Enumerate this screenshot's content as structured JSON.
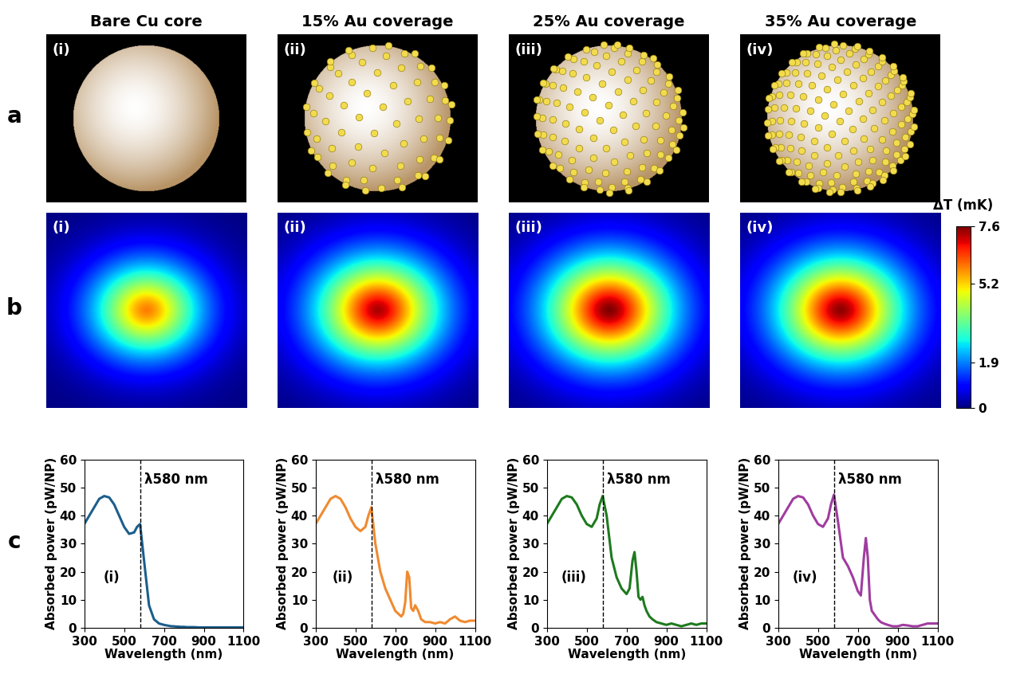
{
  "column_titles": [
    "Bare Cu core",
    "15% Au coverage",
    "25% Au coverage",
    "35% Au coverage"
  ],
  "row_labels": [
    "a",
    "b",
    "c"
  ],
  "panel_labels": [
    "(i)",
    "(ii)",
    "(iii)",
    "(iv)"
  ],
  "schematics": {
    "au_coverage": [
      0,
      15,
      25,
      35
    ]
  },
  "heat_maps": {
    "peak_dT": [
      5.9,
      7.3,
      7.6,
      7.5
    ],
    "colorbar": {
      "label": "ΔT (mK)",
      "range": [
        0,
        7.6
      ],
      "ticks": [
        0,
        1.9,
        5.2,
        7.6
      ]
    }
  },
  "chart_data": [
    {
      "type": "line",
      "color": "#1b5e8c",
      "x": [
        300,
        325,
        350,
        375,
        400,
        425,
        450,
        475,
        500,
        525,
        550,
        565,
        580,
        600,
        625,
        650,
        675,
        700,
        715,
        730,
        740,
        750,
        760,
        770,
        780,
        790,
        800,
        815,
        830,
        850,
        875,
        900,
        925,
        950,
        975,
        1000,
        1025,
        1050,
        1075,
        1100
      ],
      "values": [
        37,
        40,
        43,
        46,
        47,
        46.5,
        44,
        40,
        36,
        33.5,
        34,
        36,
        37,
        24,
        8,
        3,
        1.5,
        1,
        0.8,
        0.6,
        0.5,
        0.5,
        0.4,
        0.4,
        0.3,
        0.3,
        0.3,
        0.2,
        0.2,
        0.2,
        0.1,
        0.1,
        0.1,
        0.1,
        0.1,
        0.1,
        0.1,
        0.1,
        0.1,
        0.1
      ],
      "xlim": [
        300,
        1100
      ],
      "ylim": [
        0,
        60
      ],
      "xticks": [
        300,
        500,
        700,
        900,
        1100
      ],
      "yticks": [
        0,
        10,
        20,
        30,
        40,
        50,
        60
      ],
      "x_label": "Wavelength (nm)",
      "y_label": "Absorbed power (pW/NP)",
      "marker_x": 580,
      "annotation": "λ580 nm"
    },
    {
      "type": "line",
      "color": "#f08a30",
      "x": [
        300,
        325,
        350,
        375,
        400,
        425,
        450,
        475,
        500,
        525,
        550,
        565,
        580,
        600,
        625,
        650,
        675,
        700,
        715,
        730,
        740,
        750,
        760,
        770,
        780,
        790,
        800,
        815,
        830,
        850,
        875,
        900,
        925,
        950,
        975,
        1000,
        1025,
        1050,
        1075,
        1100
      ],
      "values": [
        37,
        40,
        43,
        46,
        47,
        46,
        43,
        39,
        36,
        34.5,
        36,
        40,
        43,
        30,
        20,
        14,
        10,
        6,
        5,
        4,
        5,
        9,
        20,
        18,
        7,
        6,
        8,
        6,
        3,
        2,
        2,
        1.5,
        2,
        1.5,
        3,
        4,
        2.5,
        2,
        2.5,
        2.5
      ],
      "xlim": [
        300,
        1100
      ],
      "ylim": [
        0,
        60
      ],
      "xticks": [
        300,
        500,
        700,
        900,
        1100
      ],
      "yticks": [
        0,
        10,
        20,
        30,
        40,
        50,
        60
      ],
      "x_label": "Wavelength (nm)",
      "y_label": "Absorbed power (pW/NP)",
      "marker_x": 580,
      "annotation": "λ580 nm"
    },
    {
      "type": "line",
      "color": "#1e7a1e",
      "x": [
        300,
        325,
        350,
        375,
        400,
        425,
        450,
        475,
        500,
        525,
        550,
        565,
        580,
        600,
        625,
        650,
        675,
        700,
        715,
        730,
        740,
        750,
        760,
        770,
        780,
        790,
        800,
        815,
        830,
        850,
        875,
        900,
        925,
        950,
        975,
        1000,
        1025,
        1050,
        1075,
        1100
      ],
      "values": [
        37,
        40,
        43,
        46,
        47,
        46.5,
        44,
        40,
        37,
        36,
        39,
        44,
        47,
        40,
        25,
        18,
        14,
        12,
        14,
        24,
        27,
        20,
        11,
        10,
        11,
        8,
        6,
        4,
        3,
        2,
        1.5,
        1,
        1.5,
        1,
        0.5,
        1,
        1.5,
        1,
        1.5,
        1.5
      ],
      "xlim": [
        300,
        1100
      ],
      "ylim": [
        0,
        60
      ],
      "xticks": [
        300,
        500,
        700,
        900,
        1100
      ],
      "yticks": [
        0,
        10,
        20,
        30,
        40,
        50,
        60
      ],
      "x_label": "Wavelength (nm)",
      "y_label": "Absorbed power (pW/NP)",
      "marker_x": 580,
      "annotation": "λ580 nm"
    },
    {
      "type": "line",
      "color": "#a03ca0",
      "x": [
        300,
        325,
        350,
        375,
        400,
        425,
        450,
        475,
        500,
        525,
        550,
        565,
        580,
        600,
        625,
        650,
        675,
        700,
        715,
        730,
        740,
        750,
        760,
        770,
        780,
        790,
        800,
        815,
        830,
        850,
        875,
        900,
        925,
        950,
        975,
        1000,
        1025,
        1050,
        1075,
        1100
      ],
      "values": [
        37,
        40,
        43,
        46,
        47,
        46.5,
        44,
        40,
        37,
        36,
        39,
        44,
        47.5,
        38,
        25,
        22,
        18,
        13,
        11.5,
        25,
        32,
        25,
        10,
        6,
        5,
        4,
        3,
        2,
        1.5,
        1,
        0.5,
        0.5,
        1,
        0.8,
        0.5,
        0.5,
        1,
        1.5,
        1.5,
        1.5
      ],
      "xlim": [
        300,
        1100
      ],
      "ylim": [
        0,
        60
      ],
      "xticks": [
        300,
        500,
        700,
        900,
        1100
      ],
      "yticks": [
        0,
        10,
        20,
        30,
        40,
        50,
        60
      ],
      "x_label": "Wavelength (nm)",
      "y_label": "Absorbed power (pW/NP)",
      "marker_x": 580,
      "annotation": "λ580 nm"
    }
  ]
}
